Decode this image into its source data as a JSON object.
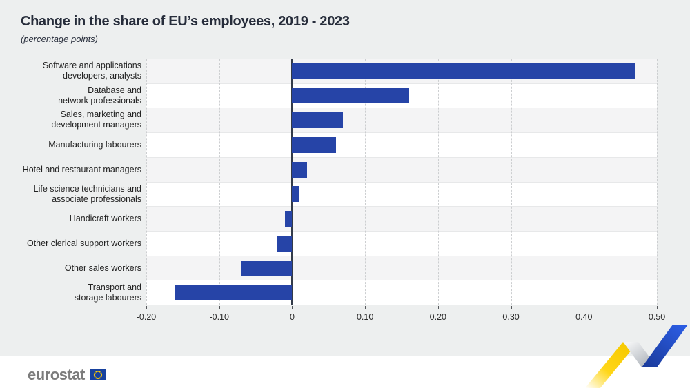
{
  "title": "Change in the share of EU’s employees, 2019 - 2023",
  "subtitle": "(percentage points)",
  "chart_data": {
    "type": "bar",
    "orientation": "horizontal",
    "title": "Change in the share of EU’s employees, 2019 - 2023",
    "subtitle": "(percentage points)",
    "categories": [
      "Software and applications\ndevelopers, analysts",
      "Database and\nnetwork professionals",
      "Sales, marketing and\ndevelopment managers",
      "Manufacturing labourers",
      "Hotel and restaurant managers",
      "Life science technicians and\nassociate professionals",
      "Handicraft workers",
      "Other clerical support workers",
      "Other sales workers",
      "Transport and\nstorage labourers"
    ],
    "values": [
      0.47,
      0.16,
      0.07,
      0.06,
      0.02,
      0.01,
      -0.01,
      -0.02,
      -0.07,
      -0.16
    ],
    "xlim": [
      -0.2,
      0.5
    ],
    "xticks": [
      {
        "value": -0.2,
        "label": "-0.20"
      },
      {
        "value": -0.1,
        "label": "-0.10"
      },
      {
        "value": 0,
        "label": "0"
      },
      {
        "value": 0.1,
        "label": "0.10"
      },
      {
        "value": 0.2,
        "label": "0.20"
      },
      {
        "value": 0.3,
        "label": "0.30"
      },
      {
        "value": 0.4,
        "label": "0.40"
      },
      {
        "value": 0.5,
        "label": "0.50"
      }
    ],
    "grid": "vertical-dashed",
    "legend": "none"
  },
  "footer": {
    "logo_text": "eurostat"
  },
  "colors": {
    "bar_blue": "#2644a7",
    "page_background": "#edefef",
    "band_gray": "#f4f4f5",
    "band_white": "#ffffff",
    "zero_line": "#333b49",
    "axis_line": "#97999b",
    "gridline": "#ccced0",
    "title_text": "#272d3b",
    "logo_gray": "#7c7c7c",
    "eu_flag_blue": "#17419e",
    "eu_star_yellow": "#ffcc00",
    "ribbon_yellow": "#ffd617",
    "ribbon_blue": "#2456d4",
    "ribbon_gray": "#a7adb5"
  }
}
